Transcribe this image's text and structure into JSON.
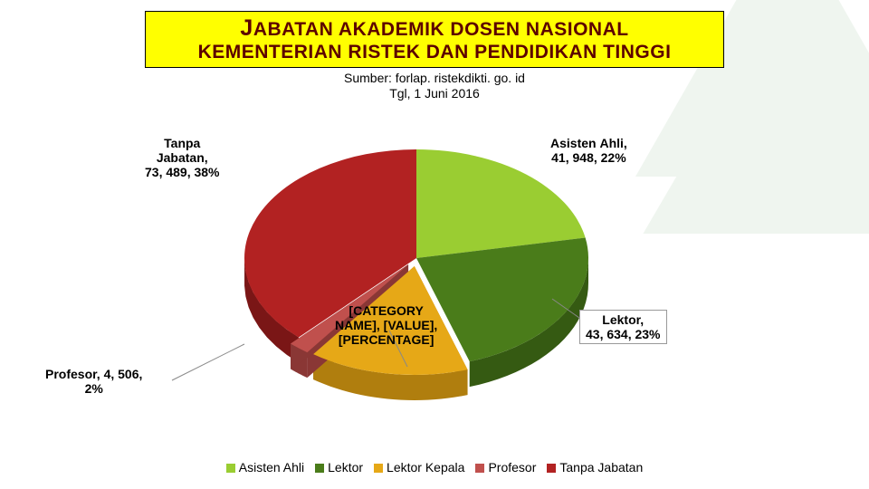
{
  "title": {
    "line1_pre": "J",
    "line1_rest": "ABATAN AKADEMIK DOSEN NASIONAL",
    "line2": "KEMENTERIAN RISTEK DAN PENDIDIKAN TINGGI",
    "color": "#5c0000",
    "bg": "#ffff00"
  },
  "source": {
    "line1": "Sumber: forlap. ristekdikti. go. id",
    "line2": "Tgl, 1 Juni 2016"
  },
  "chart": {
    "type": "pie-3d-exploded",
    "background": "#ffffff",
    "label_fontsize": 14,
    "label_fontweight": "bold",
    "slices": [
      {
        "name": "Asisten Ahli",
        "value": 41948,
        "percent": 22,
        "color": "#9acd32",
        "side": "#7aa526",
        "explode": 0
      },
      {
        "name": "Lektor",
        "value": 43634,
        "percent": 23,
        "color": "#4a7c1a",
        "side": "#355a12",
        "explode": 0
      },
      {
        "name": "Lektor Kepala",
        "value": null,
        "percent": 15,
        "color": "#e6a817",
        "side": "#b07e0e",
        "explode": 14
      },
      {
        "name": "Profesor",
        "value": 4506,
        "percent": 2,
        "color": "#c0504d",
        "side": "#8a3735",
        "explode": 14
      },
      {
        "name": "Tanpa Jabatan",
        "value": 73489,
        "percent": 38,
        "color": "#b22222",
        "side": "#7a1616",
        "explode": 0
      }
    ],
    "labels": {
      "tanpa": "Tanpa\nJabatan,\n73, 489, 38%",
      "asisten": "Asisten Ahli,\n41, 948, 22%",
      "lektor": "Lektor,\n43, 634, 23%",
      "kepala": "[CATEGORY\nNAME], [VALUE],\n[PERCENTAGE]",
      "profesor": "Profesor, 4, 506,\n2%"
    }
  },
  "legend": {
    "items": [
      {
        "label": "Asisten Ahli",
        "color": "#9acd32"
      },
      {
        "label": "Lektor",
        "color": "#4a7c1a"
      },
      {
        "label": "Lektor Kepala",
        "color": "#e6a817"
      },
      {
        "label": "Profesor",
        "color": "#c0504d"
      },
      {
        "label": "Tanpa Jabatan",
        "color": "#b22222"
      }
    ]
  },
  "deco_color": "#2e7d32"
}
